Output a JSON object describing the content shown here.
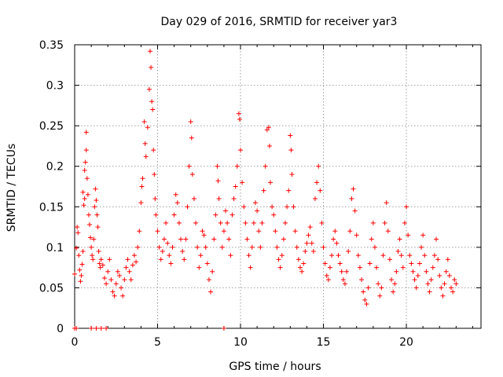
{
  "chart_data": {
    "type": "scatter",
    "title": "Day 029 of 2016, SRMTID for receiver yar3",
    "xlabel": "GPS time / hours",
    "ylabel": "SRMTID / TECUs",
    "xlim": [
      0,
      24.5
    ],
    "ylim": [
      0,
      0.35
    ],
    "x_ticks": [
      0,
      5,
      10,
      15,
      20
    ],
    "y_ticks": [
      0,
      0.05,
      0.1,
      0.15,
      0.2,
      0.25,
      0.3,
      0.35
    ],
    "x_tick_labels": [
      "0",
      "5",
      "10",
      "15",
      "20"
    ],
    "y_tick_labels": [
      "0",
      "0.05",
      "0.1",
      "0.15",
      "0.2",
      "0.25",
      "0.3",
      "0.35"
    ],
    "grid": true,
    "marker": "+",
    "color": "#ff0000",
    "series": [
      {
        "name": "SRMTID",
        "points": [
          [
            0.0,
            0.067
          ],
          [
            0.1,
            0.099
          ],
          [
            0.15,
            0.125
          ],
          [
            0.2,
            0.118
          ],
          [
            0.25,
            0.09
          ],
          [
            0.3,
            0.072
          ],
          [
            0.35,
            0.058
          ],
          [
            0.4,
            0.065
          ],
          [
            0.45,
            0.079
          ],
          [
            0.5,
            0.095
          ],
          [
            0.5,
            0.168
          ],
          [
            0.55,
            0.152
          ],
          [
            0.6,
            0.16
          ],
          [
            0.6,
            0.195
          ],
          [
            0.65,
            0.205
          ],
          [
            0.7,
            0.22
          ],
          [
            0.7,
            0.242
          ],
          [
            0.75,
            0.185
          ],
          [
            0.8,
            0.165
          ],
          [
            0.85,
            0.14
          ],
          [
            0.9,
            0.128
          ],
          [
            0.95,
            0.112
          ],
          [
            1.0,
            0.1
          ],
          [
            1.05,
            0.09
          ],
          [
            1.1,
            0.085
          ],
          [
            1.15,
            0.11
          ],
          [
            1.2,
            0.15
          ],
          [
            1.25,
            0.172
          ],
          [
            1.3,
            0.158
          ],
          [
            1.35,
            0.14
          ],
          [
            1.4,
            0.125
          ],
          [
            1.45,
            0.095
          ],
          [
            1.5,
            0.08
          ],
          [
            1.55,
            0.075
          ],
          [
            1.6,
            0.085
          ],
          [
            1.7,
            0.078
          ],
          [
            1.8,
            0.062
          ],
          [
            1.9,
            0.055
          ],
          [
            2.0,
            0.07
          ],
          [
            2.1,
            0.085
          ],
          [
            2.2,
            0.06
          ],
          [
            2.3,
            0.045
          ],
          [
            2.4,
            0.04
          ],
          [
            2.5,
            0.055
          ],
          [
            2.6,
            0.07
          ],
          [
            2.7,
            0.065
          ],
          [
            2.8,
            0.05
          ],
          [
            2.9,
            0.04
          ],
          [
            3.0,
            0.06
          ],
          [
            3.1,
            0.075
          ],
          [
            3.2,
            0.085
          ],
          [
            3.3,
            0.07
          ],
          [
            3.4,
            0.06
          ],
          [
            3.5,
            0.078
          ],
          [
            3.6,
            0.09
          ],
          [
            3.7,
            0.082
          ],
          [
            3.8,
            0.1
          ],
          [
            3.9,
            0.12
          ],
          [
            4.0,
            0.155
          ],
          [
            4.05,
            0.175
          ],
          [
            4.1,
            0.185
          ],
          [
            4.2,
            0.255
          ],
          [
            4.25,
            0.228
          ],
          [
            4.3,
            0.212
          ],
          [
            4.4,
            0.248
          ],
          [
            4.5,
            0.295
          ],
          [
            4.55,
            0.342
          ],
          [
            4.6,
            0.322
          ],
          [
            4.65,
            0.28
          ],
          [
            4.7,
            0.27
          ],
          [
            4.75,
            0.22
          ],
          [
            4.8,
            0.19
          ],
          [
            4.85,
            0.16
          ],
          [
            4.9,
            0.14
          ],
          [
            5.0,
            0.12
          ],
          [
            5.1,
            0.1
          ],
          [
            5.2,
            0.085
          ],
          [
            5.3,
            0.095
          ],
          [
            5.4,
            0.11
          ],
          [
            5.5,
            0.13
          ],
          [
            5.6,
            0.105
          ],
          [
            5.7,
            0.09
          ],
          [
            5.8,
            0.08
          ],
          [
            5.9,
            0.1
          ],
          [
            6.0,
            0.14
          ],
          [
            6.1,
            0.165
          ],
          [
            6.2,
            0.155
          ],
          [
            6.3,
            0.13
          ],
          [
            6.4,
            0.11
          ],
          [
            6.5,
            0.095
          ],
          [
            6.6,
            0.085
          ],
          [
            6.7,
            0.11
          ],
          [
            6.8,
            0.15
          ],
          [
            6.9,
            0.2
          ],
          [
            7.0,
            0.255
          ],
          [
            7.05,
            0.235
          ],
          [
            7.1,
            0.19
          ],
          [
            7.2,
            0.16
          ],
          [
            7.3,
            0.13
          ],
          [
            7.4,
            0.1
          ],
          [
            7.5,
            0.075
          ],
          [
            7.6,
            0.09
          ],
          [
            7.7,
            0.12
          ],
          [
            7.8,
            0.115
          ],
          [
            7.9,
            0.1
          ],
          [
            8.0,
            0.08
          ],
          [
            8.1,
            0.06
          ],
          [
            8.2,
            0.045
          ],
          [
            8.3,
            0.07
          ],
          [
            8.4,
            0.11
          ],
          [
            8.5,
            0.14
          ],
          [
            8.6,
            0.2
          ],
          [
            8.65,
            0.182
          ],
          [
            8.7,
            0.16
          ],
          [
            8.8,
            0.13
          ],
          [
            8.9,
            0.1
          ],
          [
            9.0,
            0.12
          ],
          [
            9.1,
            0.145
          ],
          [
            9.2,
            0.13
          ],
          [
            9.3,
            0.11
          ],
          [
            9.4,
            0.09
          ],
          [
            9.5,
            0.14
          ],
          [
            9.6,
            0.16
          ],
          [
            9.7,
            0.175
          ],
          [
            9.8,
            0.2
          ],
          [
            9.9,
            0.265
          ],
          [
            9.95,
            0.258
          ],
          [
            10.0,
            0.22
          ],
          [
            10.1,
            0.18
          ],
          [
            10.2,
            0.15
          ],
          [
            10.3,
            0.13
          ],
          [
            10.4,
            0.11
          ],
          [
            10.5,
            0.09
          ],
          [
            10.6,
            0.075
          ],
          [
            10.7,
            0.1
          ],
          [
            10.8,
            0.13
          ],
          [
            10.9,
            0.155
          ],
          [
            11.0,
            0.145
          ],
          [
            11.1,
            0.12
          ],
          [
            11.2,
            0.1
          ],
          [
            11.3,
            0.13
          ],
          [
            11.4,
            0.17
          ],
          [
            11.5,
            0.2
          ],
          [
            11.6,
            0.245
          ],
          [
            11.7,
            0.248
          ],
          [
            11.75,
            0.225
          ],
          [
            11.8,
            0.18
          ],
          [
            11.9,
            0.15
          ],
          [
            12.0,
            0.14
          ],
          [
            12.1,
            0.12
          ],
          [
            12.2,
            0.1
          ],
          [
            12.3,
            0.085
          ],
          [
            12.4,
            0.075
          ],
          [
            12.5,
            0.09
          ],
          [
            12.6,
            0.11
          ],
          [
            12.7,
            0.13
          ],
          [
            12.8,
            0.15
          ],
          [
            12.9,
            0.17
          ],
          [
            13.0,
            0.238
          ],
          [
            13.05,
            0.22
          ],
          [
            13.1,
            0.19
          ],
          [
            13.2,
            0.15
          ],
          [
            13.3,
            0.12
          ],
          [
            13.4,
            0.1
          ],
          [
            13.5,
            0.085
          ],
          [
            13.6,
            0.075
          ],
          [
            13.7,
            0.07
          ],
          [
            13.8,
            0.08
          ],
          [
            13.9,
            0.095
          ],
          [
            14.0,
            0.105
          ],
          [
            14.1,
            0.115
          ],
          [
            14.2,
            0.125
          ],
          [
            14.3,
            0.105
          ],
          [
            14.4,
            0.095
          ],
          [
            14.5,
            0.16
          ],
          [
            14.6,
            0.18
          ],
          [
            14.7,
            0.2
          ],
          [
            14.8,
            0.17
          ],
          [
            14.9,
            0.13
          ],
          [
            15.0,
            0.1
          ],
          [
            15.1,
            0.08
          ],
          [
            15.2,
            0.065
          ],
          [
            15.3,
            0.06
          ],
          [
            15.4,
            0.075
          ],
          [
            15.5,
            0.09
          ],
          [
            15.6,
            0.11
          ],
          [
            15.7,
            0.12
          ],
          [
            15.8,
            0.105
          ],
          [
            15.9,
            0.09
          ],
          [
            16.0,
            0.08
          ],
          [
            16.1,
            0.07
          ],
          [
            16.2,
            0.06
          ],
          [
            16.3,
            0.055
          ],
          [
            16.4,
            0.07
          ],
          [
            16.5,
            0.095
          ],
          [
            16.6,
            0.12
          ],
          [
            16.7,
            0.16
          ],
          [
            16.8,
            0.172
          ],
          [
            16.9,
            0.145
          ],
          [
            17.0,
            0.115
          ],
          [
            17.1,
            0.09
          ],
          [
            17.2,
            0.075
          ],
          [
            17.3,
            0.06
          ],
          [
            17.4,
            0.045
          ],
          [
            17.5,
            0.035
          ],
          [
            17.6,
            0.03
          ],
          [
            17.7,
            0.05
          ],
          [
            17.8,
            0.08
          ],
          [
            17.9,
            0.11
          ],
          [
            18.0,
            0.13
          ],
          [
            18.1,
            0.1
          ],
          [
            18.2,
            0.075
          ],
          [
            18.3,
            0.055
          ],
          [
            18.4,
            0.04
          ],
          [
            18.5,
            0.05
          ],
          [
            18.6,
            0.09
          ],
          [
            18.7,
            0.13
          ],
          [
            18.8,
            0.155
          ],
          [
            18.9,
            0.12
          ],
          [
            19.0,
            0.085
          ],
          [
            19.1,
            0.06
          ],
          [
            19.2,
            0.045
          ],
          [
            19.3,
            0.055
          ],
          [
            19.4,
            0.07
          ],
          [
            19.5,
            0.095
          ],
          [
            19.6,
            0.11
          ],
          [
            19.7,
            0.09
          ],
          [
            19.8,
            0.075
          ],
          [
            19.9,
            0.13
          ],
          [
            20.0,
            0.15
          ],
          [
            20.1,
            0.115
          ],
          [
            20.2,
            0.09
          ],
          [
            20.3,
            0.08
          ],
          [
            20.4,
            0.07
          ],
          [
            20.5,
            0.06
          ],
          [
            20.6,
            0.05
          ],
          [
            20.7,
            0.065
          ],
          [
            20.8,
            0.08
          ],
          [
            20.9,
            0.1
          ],
          [
            21.0,
            0.115
          ],
          [
            21.1,
            0.09
          ],
          [
            21.2,
            0.07
          ],
          [
            21.3,
            0.055
          ],
          [
            21.4,
            0.045
          ],
          [
            21.5,
            0.06
          ],
          [
            21.6,
            0.075
          ],
          [
            21.7,
            0.09
          ],
          [
            21.8,
            0.11
          ],
          [
            21.9,
            0.085
          ],
          [
            22.0,
            0.065
          ],
          [
            22.1,
            0.05
          ],
          [
            22.2,
            0.04
          ],
          [
            22.3,
            0.055
          ],
          [
            22.4,
            0.07
          ],
          [
            22.5,
            0.085
          ],
          [
            22.6,
            0.065
          ],
          [
            22.7,
            0.05
          ],
          [
            22.8,
            0.045
          ],
          [
            22.9,
            0.06
          ],
          [
            23.0,
            0.055
          ],
          [
            0.0,
            0.0
          ],
          [
            0.1,
            0.0
          ],
          [
            1.0,
            0.0
          ],
          [
            1.3,
            0.0
          ],
          [
            1.6,
            0.0
          ],
          [
            1.9,
            0.0
          ],
          [
            9.0,
            0.0
          ]
        ]
      }
    ]
  }
}
